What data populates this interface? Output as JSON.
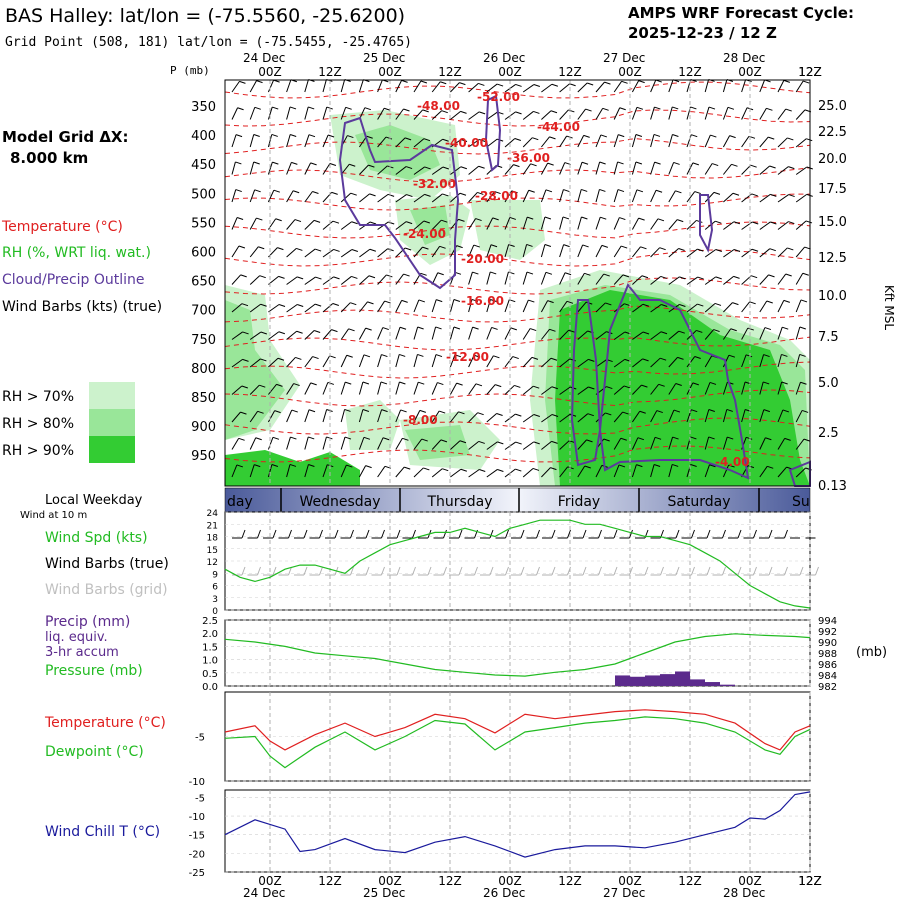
{
  "header": {
    "title": "BAS Halley:  lat/lon = (-75.5560, -25.6200)",
    "grid_point": "Grid Point (508, 181) lat/lon = (-75.5455, -25.4765)",
    "cycle_label": "AMPS WRF Forecast Cycle:",
    "cycle_value": "2025-12-23 / 12  Z",
    "p_unit": "P (mb)",
    "model_grid": "Model Grid ΔX:",
    "model_grid_value": "8.000 km"
  },
  "legend": {
    "temperature": "Temperature (°C)",
    "rh": "RH (%, WRT liq. wat.)",
    "cloud": "Cloud/Precip Outline",
    "wind": "Wind Barbs (kts) (true)",
    "rh70": "RH > 70%",
    "rh80": "RH > 80%",
    "rh90": "RH > 90%",
    "kft_label": "Kft MSL"
  },
  "colors": {
    "temp": "#e02020",
    "rh70": "#ccf2cc",
    "rh80": "#99e699",
    "rh90": "#33cc33",
    "cloud": "#5b3a9c",
    "dewpoint": "#22bb22",
    "windchill": "#1a1a9c",
    "precip": "#5b2a8c",
    "grid": "#b0b0b0"
  },
  "time_axis": {
    "ticks": [
      "00Z",
      "12Z",
      "00Z",
      "12Z",
      "00Z",
      "12Z",
      "00Z",
      "12Z",
      "00Z",
      "12Z"
    ],
    "dates": [
      "24 Dec",
      "25 Dec",
      "26 Dec",
      "27 Dec",
      "28 Dec"
    ]
  },
  "weekday": {
    "label": "Local Weekday",
    "sublabel": "Wind at 10 m",
    "days": [
      "day",
      "Wednesday",
      "Thursday",
      "Friday",
      "Saturday",
      "Su"
    ]
  },
  "chart_data": [
    {
      "type": "heatmap",
      "name": "cross-section",
      "pressure_ticks": [
        "350",
        "400",
        "450",
        "500",
        "550",
        "600",
        "650",
        "700",
        "750",
        "800",
        "850",
        "900",
        "950"
      ],
      "height_ticks": [
        "25.0",
        "22.5",
        "20.0",
        "17.5",
        "15.0",
        "12.5",
        "10.0",
        "7.5",
        "5.0",
        "2.5",
        "0.13"
      ],
      "temperature_contours": [
        {
          "label": "-52.00",
          "value": -52
        },
        {
          "label": "-48.00",
          "value": -48
        },
        {
          "label": "-44.00",
          "value": -44
        },
        {
          "label": "-40.00",
          "value": -40
        },
        {
          "label": "-36.00",
          "value": -36
        },
        {
          "label": "-32.00",
          "value": -32
        },
        {
          "label": "-28.00",
          "value": -28
        },
        {
          "label": "-24.00",
          "value": -24
        },
        {
          "label": "-20.00",
          "value": -20
        },
        {
          "label": "-16.00",
          "value": -16
        },
        {
          "label": "-12.00",
          "value": -12
        },
        {
          "label": "-8.00",
          "value": -8
        },
        {
          "label": "-4.00",
          "value": -4
        }
      ]
    },
    {
      "type": "line",
      "name": "wind",
      "series_labels": [
        "Wind Spd (kts)",
        "Wind Barbs (true)",
        "Wind Barbs (grid)"
      ],
      "y_ticks": [
        "24",
        "21",
        "18",
        "15",
        "12",
        "9",
        "6",
        "3",
        "0"
      ],
      "ylim": [
        0,
        24
      ],
      "x_hours": [
        0,
        3,
        6,
        9,
        12,
        15,
        18,
        21,
        24,
        27,
        30,
        33,
        36,
        39,
        42,
        45,
        48,
        51,
        54,
        57,
        60,
        63,
        66,
        69,
        72,
        75,
        78,
        81,
        84,
        87,
        90,
        93,
        96,
        99,
        102,
        105,
        108,
        111,
        114,
        117
      ],
      "speed": [
        10,
        8,
        7,
        8,
        10,
        11,
        11,
        10,
        9,
        12,
        14,
        16,
        17,
        18,
        19,
        19,
        20,
        19,
        18,
        20,
        21,
        22,
        22,
        22,
        21,
        21,
        20,
        19,
        18,
        18,
        17,
        16,
        14,
        12,
        9,
        6,
        4,
        2,
        1,
        0.5
      ]
    },
    {
      "type": "bar",
      "name": "precip-pressure",
      "labels": [
        "Precip (mm)",
        "liq. equiv.",
        "3-hr accum",
        "Pressure (mb)"
      ],
      "precip_ticks": [
        "2.5",
        "2.0",
        "1.5",
        "1.0",
        "0.5",
        "0.0"
      ],
      "pressure_ticks": [
        "994",
        "992",
        "990",
        "988",
        "986",
        "984",
        "982"
      ],
      "pressure_unit": "(mb)",
      "precip_x": [
        78,
        81,
        84,
        87,
        90,
        93,
        96,
        99
      ],
      "precip_mm": [
        0.4,
        0.35,
        0.4,
        0.45,
        0.55,
        0.25,
        0.15,
        0.05
      ],
      "pressure_x": [
        0,
        6,
        12,
        18,
        24,
        30,
        36,
        42,
        48,
        54,
        60,
        66,
        72,
        78,
        84,
        90,
        96,
        102,
        108,
        114,
        117
      ],
      "pressure_mb": [
        990.5,
        990,
        989.2,
        988,
        987.5,
        987,
        986,
        985,
        984.5,
        984,
        983.8,
        984.5,
        985,
        986,
        988,
        990,
        991,
        991.5,
        991.2,
        991,
        990.8
      ]
    },
    {
      "type": "line",
      "name": "temperature",
      "labels": [
        "Temperature (°C)",
        "Dewpoint (°C)"
      ],
      "y_ticks": [
        "-5",
        "-10"
      ],
      "ylim": [
        -10,
        0
      ],
      "x": [
        0,
        6,
        9,
        12,
        18,
        24,
        30,
        36,
        42,
        48,
        54,
        60,
        66,
        72,
        78,
        84,
        90,
        96,
        102,
        108,
        111,
        114,
        117
      ],
      "temperature": [
        -4.5,
        -3.8,
        -5.5,
        -6.5,
        -4.8,
        -3.5,
        -5.0,
        -4.0,
        -2.5,
        -3.0,
        -4.6,
        -2.5,
        -3.0,
        -2.6,
        -2.2,
        -2.0,
        -2.2,
        -2.5,
        -3.5,
        -5.8,
        -6.5,
        -4.5,
        -3.8
      ],
      "dewpoint": [
        -5.2,
        -5.0,
        -7.2,
        -8.5,
        -6.2,
        -4.5,
        -6.5,
        -5.0,
        -3.2,
        -3.6,
        -6.5,
        -4.5,
        -4.0,
        -3.5,
        -3.2,
        -2.8,
        -3.0,
        -3.5,
        -4.5,
        -6.5,
        -7.0,
        -5.0,
        -4.2
      ]
    },
    {
      "type": "line",
      "name": "wind-chill",
      "label": "Wind Chill T (°C)",
      "y_ticks": [
        "-5",
        "-10",
        "-15",
        "-20",
        "-25"
      ],
      "ylim": [
        -25,
        -3
      ],
      "x": [
        0,
        6,
        12,
        15,
        18,
        24,
        30,
        36,
        42,
        48,
        54,
        60,
        66,
        72,
        78,
        84,
        90,
        96,
        102,
        105,
        108,
        111,
        114,
        117
      ],
      "windchill": [
        -15,
        -11,
        -13.5,
        -19.5,
        -19,
        -16,
        -19,
        -19.8,
        -17,
        -15.5,
        -18,
        -21,
        -19,
        -18,
        -18,
        -18.5,
        -17,
        -15,
        -13,
        -10.5,
        -10.8,
        -8.5,
        -4.2,
        -3.5
      ]
    }
  ]
}
